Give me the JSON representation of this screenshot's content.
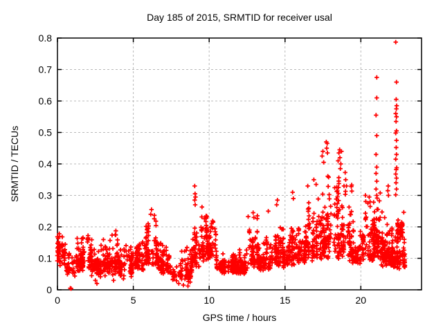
{
  "chart_data": {
    "type": "scatter",
    "title": "Day 185 of 2015, SRMTID for receiver usal",
    "xlabel": "GPS time / hours",
    "ylabel": "SRMTID / TECUs",
    "xlim": [
      0,
      24
    ],
    "ylim": [
      0,
      0.8
    ],
    "xticks": {
      "values": [
        0,
        5,
        10,
        15,
        20
      ],
      "labels": [
        "0",
        "5",
        "10",
        "15",
        "20"
      ]
    },
    "yticks": {
      "values": [
        0,
        0.1,
        0.2,
        0.3,
        0.4,
        0.5,
        0.6,
        0.7,
        0.8
      ],
      "labels": [
        "0",
        "0.1",
        "0.2",
        "0.3",
        "0.4",
        "0.5",
        "0.6",
        "0.7",
        "0.8"
      ]
    },
    "grid": {
      "visible": true,
      "color": "#b8b8b8",
      "style": "dashed"
    },
    "frame_color": "#000000",
    "legend": "none",
    "series": [
      {
        "name": "SRMTID",
        "marker": "plus",
        "color": "#ff0000",
        "seed": 185,
        "band_segments_format": "[x_start_hours, x_end_hours, y_base_TECUs, y_top_TECUs, n_points] - envelope of the dense scatter band read from the plot",
        "band_segments": [
          [
            0.0,
            0.6,
            0.085,
            0.22,
            55
          ],
          [
            0.6,
            1.15,
            0.05,
            0.135,
            40
          ],
          [
            1.15,
            2.2,
            0.065,
            0.19,
            100
          ],
          [
            2.2,
            3.2,
            0.05,
            0.17,
            95
          ],
          [
            3.2,
            4.05,
            0.055,
            0.19,
            85
          ],
          [
            4.05,
            5.0,
            0.045,
            0.16,
            90
          ],
          [
            5.0,
            5.8,
            0.065,
            0.175,
            75
          ],
          [
            5.8,
            6.6,
            0.075,
            0.255,
            85
          ],
          [
            6.6,
            7.6,
            0.055,
            0.165,
            85
          ],
          [
            7.6,
            8.85,
            0.03,
            0.135,
            95
          ],
          [
            8.85,
            9.4,
            0.075,
            0.25,
            55
          ],
          [
            9.4,
            10.45,
            0.095,
            0.27,
            115
          ],
          [
            10.45,
            12.6,
            0.055,
            0.14,
            210
          ],
          [
            12.6,
            13.2,
            0.075,
            0.235,
            55
          ],
          [
            13.2,
            14.2,
            0.065,
            0.185,
            90
          ],
          [
            14.2,
            15.2,
            0.075,
            0.22,
            95
          ],
          [
            15.2,
            16.3,
            0.085,
            0.26,
            105
          ],
          [
            16.3,
            17.2,
            0.095,
            0.31,
            95
          ],
          [
            17.2,
            18.2,
            0.095,
            0.4,
            105
          ],
          [
            18.2,
            19.4,
            0.1,
            0.42,
            125
          ],
          [
            19.4,
            20.2,
            0.085,
            0.26,
            80
          ],
          [
            20.2,
            20.9,
            0.095,
            0.3,
            75
          ],
          [
            20.9,
            21.35,
            0.095,
            0.33,
            45
          ],
          [
            21.35,
            22.05,
            0.075,
            0.28,
            80
          ],
          [
            22.05,
            22.9,
            0.065,
            0.3,
            95
          ],
          [
            22.35,
            22.75,
            0.175,
            0.225,
            45
          ],
          [
            21.85,
            22.3,
            0.085,
            0.125,
            35
          ]
        ],
        "outlier_points_format": "[x_hours, y_TECUs] - individually visible points read from the plot",
        "outlier_points": [
          [
            0.85,
            0.005
          ],
          [
            0.9,
            0.004
          ],
          [
            2.5,
            0.03
          ],
          [
            2.6,
            0.02
          ],
          [
            3.7,
            0.03
          ],
          [
            4.35,
            0.035
          ],
          [
            8.0,
            0.02
          ],
          [
            8.3,
            0.015
          ],
          [
            8.6,
            0.012
          ],
          [
            6.2,
            0.255
          ],
          [
            6.15,
            0.24
          ],
          [
            9.05,
            0.33
          ],
          [
            9.07,
            0.305
          ],
          [
            9.1,
            0.295
          ],
          [
            9.05,
            0.285
          ],
          [
            9.08,
            0.27
          ],
          [
            12.9,
            0.245
          ],
          [
            12.95,
            0.23
          ],
          [
            13.9,
            0.25
          ],
          [
            14.5,
            0.285
          ],
          [
            14.45,
            0.27
          ],
          [
            15.5,
            0.31
          ],
          [
            15.55,
            0.29
          ],
          [
            16.5,
            0.33
          ],
          [
            16.9,
            0.35
          ],
          [
            17.05,
            0.335
          ],
          [
            17.45,
            0.425
          ],
          [
            17.5,
            0.44
          ],
          [
            17.72,
            0.47
          ],
          [
            17.78,
            0.465
          ],
          [
            17.75,
            0.45
          ],
          [
            17.8,
            0.435
          ],
          [
            17.55,
            0.405
          ],
          [
            18.5,
            0.41
          ],
          [
            18.55,
            0.435
          ],
          [
            18.6,
            0.445
          ],
          [
            18.62,
            0.42
          ],
          [
            18.68,
            0.4
          ],
          [
            18.72,
            0.44
          ],
          [
            18.65,
            0.385
          ],
          [
            19.0,
            0.35
          ],
          [
            19.05,
            0.33
          ],
          [
            20.3,
            0.3
          ],
          [
            20.55,
            0.295
          ],
          [
            21.05,
            0.675
          ],
          [
            21.05,
            0.61
          ],
          [
            21.0,
            0.555
          ],
          [
            21.05,
            0.49
          ],
          [
            21.0,
            0.43
          ],
          [
            21.05,
            0.39
          ],
          [
            21.0,
            0.37
          ],
          [
            21.05,
            0.345
          ],
          [
            21.0,
            0.32
          ],
          [
            21.05,
            0.3
          ],
          [
            21.8,
            0.33
          ],
          [
            21.78,
            0.315
          ],
          [
            21.82,
            0.3
          ],
          [
            22.3,
            0.787
          ],
          [
            22.35,
            0.66
          ],
          [
            22.33,
            0.605
          ],
          [
            22.36,
            0.585
          ],
          [
            22.34,
            0.575
          ],
          [
            22.3,
            0.56
          ],
          [
            22.35,
            0.55
          ],
          [
            22.32,
            0.535
          ],
          [
            22.35,
            0.505
          ],
          [
            22.3,
            0.498
          ],
          [
            22.35,
            0.475
          ],
          [
            22.33,
            0.452
          ],
          [
            22.35,
            0.43
          ],
          [
            22.3,
            0.415
          ],
          [
            22.36,
            0.388
          ],
          [
            22.33,
            0.382
          ],
          [
            22.3,
            0.368
          ],
          [
            22.35,
            0.355
          ],
          [
            22.32,
            0.34
          ],
          [
            22.35,
            0.32
          ],
          [
            22.3,
            0.302
          ]
        ]
      }
    ]
  }
}
